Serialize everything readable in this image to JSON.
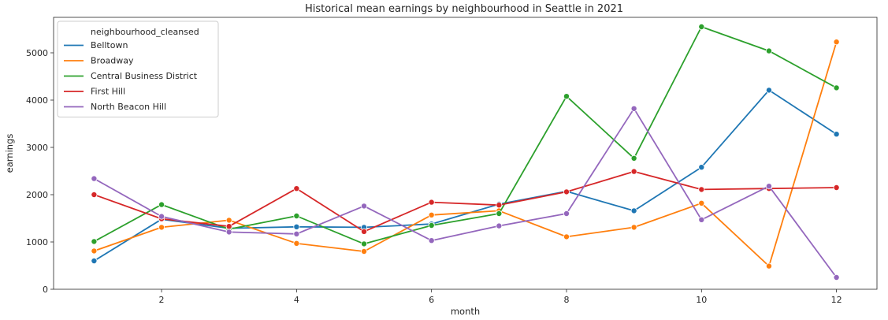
{
  "chart_data": {
    "type": "line",
    "title": "Historical mean earnings by neighbourhood in Seattle in 2021",
    "xlabel": "month",
    "ylabel": "earnings",
    "xlim": [
      0.4,
      12.6
    ],
    "ylim": [
      0,
      5750
    ],
    "xticks": [
      2,
      4,
      6,
      8,
      10,
      12
    ],
    "yticks": [
      0,
      1000,
      2000,
      3000,
      4000,
      5000
    ],
    "grid": false,
    "legend_title": "neighbourhood_cleansed",
    "legend_position": "upper-left",
    "x": [
      1,
      2,
      3,
      4,
      5,
      6,
      7,
      8,
      9,
      10,
      11,
      12
    ],
    "series": [
      {
        "name": "Belltown",
        "color": "#1f77b4",
        "values": [
          600,
          1480,
          1290,
          1320,
          1310,
          1380,
          1800,
          2070,
          1660,
          2580,
          4210,
          3280
        ]
      },
      {
        "name": "Broadway",
        "color": "#ff7f0e",
        "values": [
          810,
          1310,
          1460,
          970,
          800,
          1570,
          1660,
          1110,
          1310,
          1820,
          490,
          5230
        ]
      },
      {
        "name": "Central Business District",
        "color": "#2ca02c",
        "values": [
          1010,
          1790,
          1270,
          1550,
          960,
          1350,
          1600,
          4080,
          2770,
          5550,
          5040,
          4260
        ]
      },
      {
        "name": "First Hill",
        "color": "#d62728",
        "values": [
          2000,
          1490,
          1330,
          2130,
          1220,
          1840,
          1780,
          2060,
          2490,
          2110,
          2130,
          2150
        ]
      },
      {
        "name": "North Beacon Hill",
        "color": "#9467bd",
        "values": [
          2340,
          1540,
          1210,
          1170,
          1760,
          1030,
          1340,
          1600,
          3820,
          1470,
          2180,
          250
        ]
      }
    ]
  }
}
